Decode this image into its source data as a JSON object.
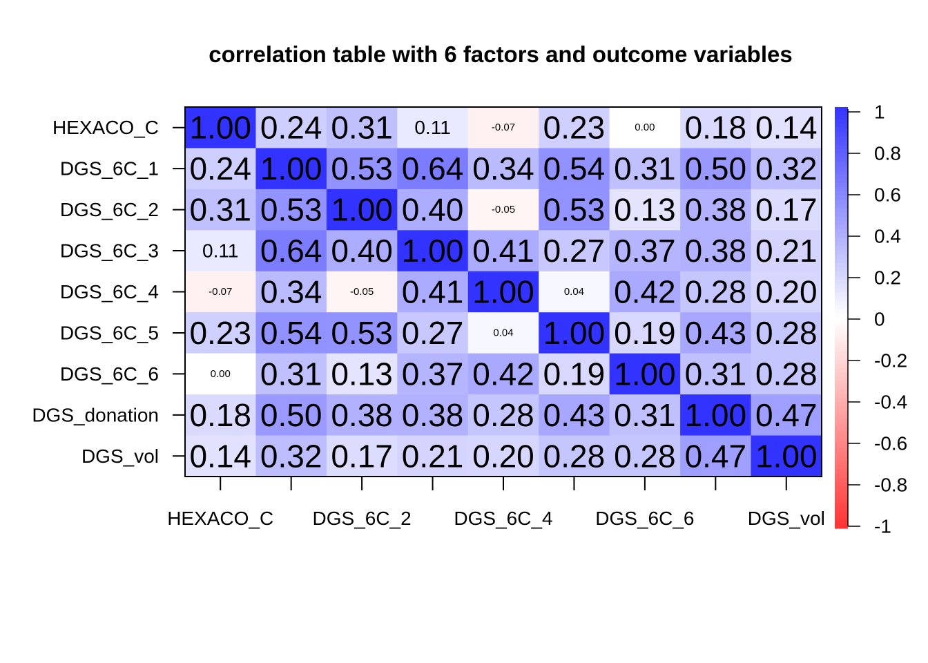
{
  "chart_data": {
    "type": "heatmap",
    "title": "correlation table with 6 factors and outcome variables",
    "rows": [
      "HEXACO_C",
      "DGS_6C_1",
      "DGS_6C_2",
      "DGS_6C_3",
      "DGS_6C_4",
      "DGS_6C_5",
      "DGS_6C_6",
      "DGS_donation",
      "DGS_vol"
    ],
    "columns": [
      "HEXACO_C",
      "DGS_6C_1",
      "DGS_6C_2",
      "DGS_6C_3",
      "DGS_6C_4",
      "DGS_6C_5",
      "DGS_6C_6",
      "DGS_donation",
      "DGS_vol"
    ],
    "x_tick_labels": [
      "HEXACO_C",
      "",
      "DGS_6C_2",
      "",
      "DGS_6C_4",
      "",
      "DGS_6C_6",
      "",
      "DGS_vol"
    ],
    "values": [
      [
        1.0,
        0.24,
        0.31,
        0.11,
        -0.07,
        0.23,
        0.0,
        0.18,
        0.14
      ],
      [
        0.24,
        1.0,
        0.53,
        0.64,
        0.34,
        0.54,
        0.31,
        0.5,
        0.32
      ],
      [
        0.31,
        0.53,
        1.0,
        0.4,
        -0.05,
        0.53,
        0.13,
        0.38,
        0.17
      ],
      [
        0.11,
        0.64,
        0.4,
        1.0,
        0.41,
        0.27,
        0.37,
        0.38,
        0.21
      ],
      [
        -0.07,
        0.34,
        -0.05,
        0.41,
        1.0,
        0.04,
        0.42,
        0.28,
        0.2
      ],
      [
        0.23,
        0.54,
        0.53,
        0.27,
        0.04,
        1.0,
        0.19,
        0.43,
        0.28
      ],
      [
        0.0,
        0.31,
        0.13,
        0.37,
        0.42,
        0.19,
        1.0,
        0.31,
        0.28
      ],
      [
        0.18,
        0.5,
        0.38,
        0.38,
        0.28,
        0.43,
        0.31,
        1.0,
        0.47
      ],
      [
        0.14,
        0.32,
        0.17,
        0.21,
        0.2,
        0.28,
        0.28,
        0.47,
        1.0
      ]
    ],
    "color_scale": {
      "min": -1,
      "max": 1,
      "low_color": "#FF3333",
      "mid_color": "#FFFFFF",
      "high_color": "#3333FF"
    },
    "colorbar_ticks": [
      "1",
      "0.8",
      "0.6",
      "0.4",
      "0.2",
      "0",
      "-0.2",
      "-0.4",
      "-0.6",
      "-0.8",
      "-1"
    ],
    "legend_position": "right"
  }
}
